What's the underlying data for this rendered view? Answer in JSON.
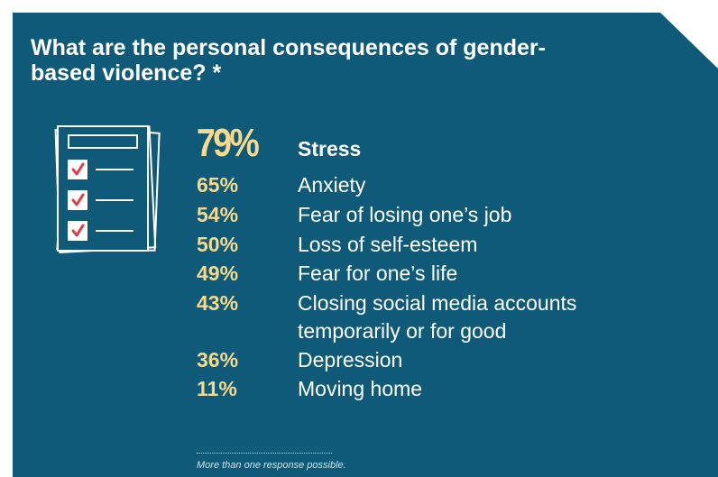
{
  "title": "What are the personal consequences of gender-based violence? *",
  "footnote": "More than one response possible.",
  "colors": {
    "panel": "#0e5a78",
    "percent": "#f6d98b",
    "check": "#e03a4a"
  },
  "icon": "checklist-icon",
  "chart_data": {
    "type": "table",
    "title": "What are the personal consequences of gender-based violence? *",
    "unit": "%",
    "rows": [
      {
        "percent": "79%",
        "value": 79,
        "label": "Stress",
        "label_line2": ""
      },
      {
        "percent": "65%",
        "value": 65,
        "label": "Anxiety",
        "label_line2": ""
      },
      {
        "percent": "54%",
        "value": 54,
        "label": "Fear of losing one’s job",
        "label_line2": ""
      },
      {
        "percent": "50%",
        "value": 50,
        "label": "Loss of self-esteem",
        "label_line2": ""
      },
      {
        "percent": "49%",
        "value": 49,
        "label": "Fear for one’s life",
        "label_line2": ""
      },
      {
        "percent": "43%",
        "value": 43,
        "label": "Closing social media accounts",
        "label_line2": "temporarily or for good"
      },
      {
        "percent": "36%",
        "value": 36,
        "label": "Depression",
        "label_line2": ""
      },
      {
        "percent": "11%",
        "value": 11,
        "label": "Moving home",
        "label_line2": ""
      }
    ]
  }
}
